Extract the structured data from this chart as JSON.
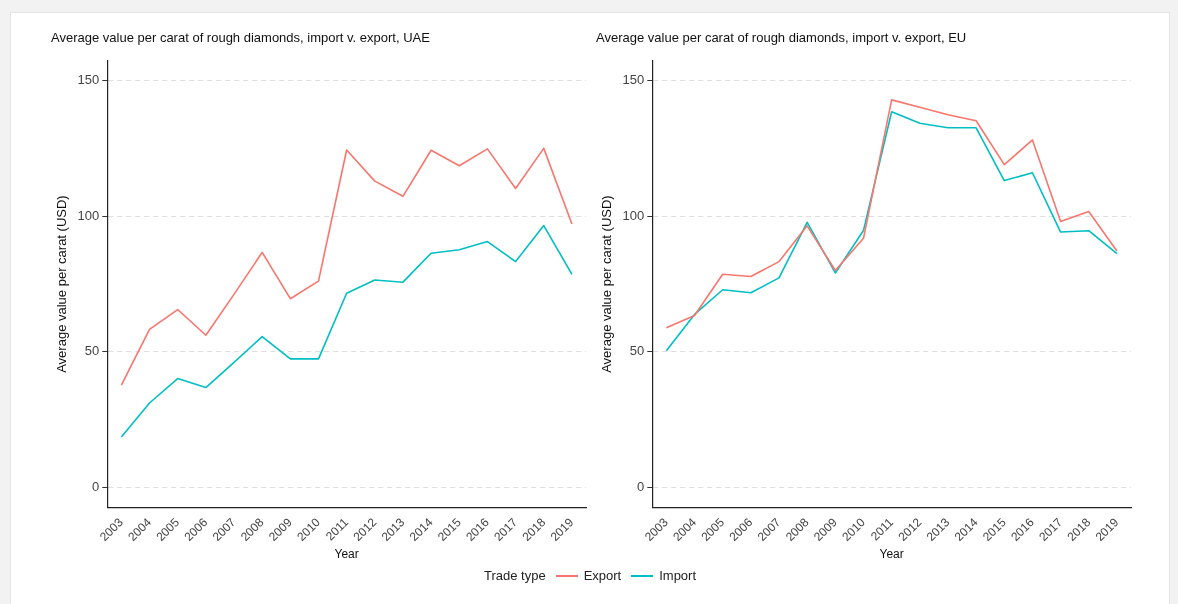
{
  "chart_data": [
    {
      "type": "line",
      "title": "Average value per carat of rough diamonds, import v. export, UAE",
      "xlabel": "Year",
      "ylabel": "Average value per carat (USD)",
      "legend_title": "Trade type",
      "legend": "bottom",
      "grid": "y",
      "categories": [
        "2003",
        "2004",
        "2005",
        "2006",
        "2007",
        "2008",
        "2009",
        "2010",
        "2011",
        "2012",
        "2013",
        "2014",
        "2015",
        "2016",
        "2017",
        "2018",
        "2019"
      ],
      "ylim": [
        -7.5,
        157.5
      ],
      "yticks": [
        0,
        50,
        100,
        150
      ],
      "series": [
        {
          "name": "Export",
          "color": "#f8766d",
          "values": [
            37.7,
            58.3,
            65.6,
            56.1,
            71.2,
            86.7,
            69.6,
            76.1,
            124.5,
            113,
            107.4,
            124.4,
            118.7,
            124.9,
            110.3,
            125.1,
            97.2
          ]
        },
        {
          "name": "Import",
          "color": "#00bfc4",
          "values": [
            18.5,
            31.1,
            40.1,
            36.8,
            46.1,
            55.6,
            47.4,
            47.4,
            71.6,
            76.5,
            75.7,
            86.4,
            87.7,
            90.7,
            83.3,
            96.6,
            78.6
          ]
        }
      ]
    },
    {
      "type": "line",
      "title": "Average value per carat of rough diamonds, import v. export, EU",
      "xlabel": "Year",
      "ylabel": "Average value per carat (USD)",
      "grid": "y",
      "categories": [
        "2003",
        "2004",
        "2005",
        "2006",
        "2007",
        "2008",
        "2009",
        "2010",
        "2011",
        "2012",
        "2013",
        "2014",
        "2015",
        "2016",
        "2017",
        "2018",
        "2019"
      ],
      "ylim": [
        -7.5,
        157.5
      ],
      "yticks": [
        0,
        50,
        100,
        150
      ],
      "series": [
        {
          "color": "#f8766d",
          "values": [
            58.9,
            63.4,
            78.6,
            77.8,
            83.3,
            96.5,
            80,
            91.9,
            143,
            140.3,
            137.5,
            135.3,
            119.1,
            128.2,
            98.1,
            101.8,
            87.2
          ]
        },
        {
          "color": "#00bfc4",
          "values": [
            50.4,
            63.8,
            72.9,
            71.8,
            77.3,
            97.8,
            79.1,
            94.8,
            138.6,
            134.4,
            132.7,
            132.7,
            113.2,
            116.1,
            94.2,
            94.7,
            86.2
          ]
        }
      ]
    }
  ]
}
